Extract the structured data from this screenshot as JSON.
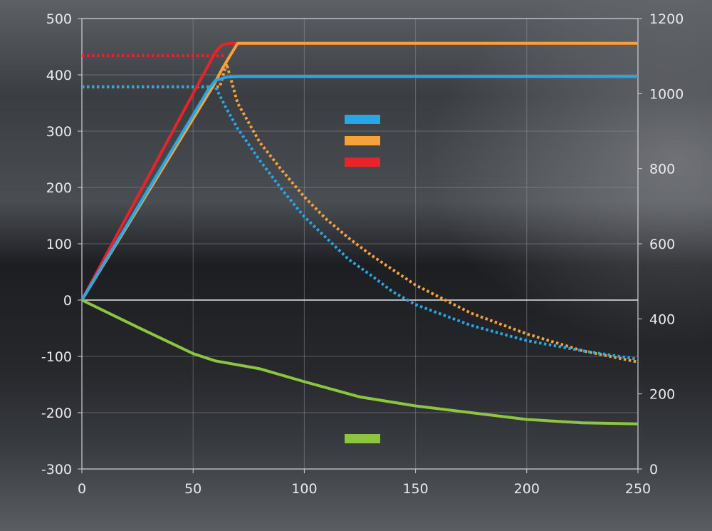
{
  "chart_data": {
    "type": "line",
    "title": "",
    "xlabel": "",
    "ylabel": "",
    "y2label": "",
    "grid": true,
    "x_range": [
      0,
      250
    ],
    "y_left_range": [
      -300,
      500
    ],
    "y_right_range": [
      0,
      1200
    ],
    "x_ticks": [
      0,
      50,
      100,
      150,
      200,
      250
    ],
    "y_left_ticks": [
      500,
      400,
      300,
      200,
      100,
      0,
      -100,
      -200,
      -300
    ],
    "y_right_ticks": [
      1200,
      1000,
      800,
      600,
      400,
      200,
      0
    ],
    "legend": {
      "placement": "center",
      "items": [
        {
          "color": "#27a7e6"
        },
        {
          "color": "#f6a23c"
        },
        {
          "color": "#e8232a"
        },
        {
          "color": "#8cc63f"
        }
      ]
    },
    "series": [
      {
        "color": "#e8232a",
        "style": "solid",
        "axis": "left",
        "x": [
          0,
          60,
          63,
          66,
          70,
          250
        ],
        "y": [
          0,
          440,
          453,
          456,
          456,
          456
        ]
      },
      {
        "color": "#f6a23c",
        "style": "solid",
        "axis": "left",
        "x": [
          0,
          59,
          63,
          66,
          70,
          250
        ],
        "y": [
          0,
          380,
          410,
          430,
          456,
          456
        ]
      },
      {
        "color": "#27a7e6",
        "style": "solid",
        "axis": "left",
        "x": [
          0,
          57,
          60,
          65,
          70,
          250
        ],
        "y": [
          0,
          375,
          390,
          396,
          397,
          397
        ]
      },
      {
        "color": "#e8232a",
        "style": "dotted",
        "axis": "left",
        "x": [
          0,
          65
        ],
        "y": [
          434,
          434
        ]
      },
      {
        "color": "#f6a23c",
        "style": "dotted",
        "axis": "right",
        "x": [
          0,
          62,
          65,
          70,
          80,
          90,
          100,
          110,
          120,
          130,
          150,
          175,
          200,
          225,
          250
        ],
        "y": [
          1018,
          1018,
          1080,
          975,
          870,
          795,
          725,
          665,
          615,
          570,
          490,
          415,
          360,
          315,
          285
        ]
      },
      {
        "color": "#27a7e6",
        "style": "dotted",
        "axis": "left",
        "x": [
          0,
          60,
          65,
          70,
          80,
          90,
          100,
          110,
          120,
          130,
          140,
          150,
          175,
          200,
          225,
          250
        ],
        "y": [
          379,
          379,
          340,
          305,
          248,
          196,
          148,
          110,
          72,
          44,
          14,
          -8,
          -45,
          -72,
          -90,
          -105
        ]
      },
      {
        "color": "#8cc63f",
        "style": "solid",
        "axis": "left",
        "x": [
          0,
          25,
          50,
          60,
          80,
          100,
          125,
          150,
          175,
          200,
          225,
          250
        ],
        "y": [
          0,
          -48,
          -95,
          -108,
          -122,
          -145,
          -172,
          -188,
          -200,
          -212,
          -218,
          -220
        ]
      }
    ]
  }
}
